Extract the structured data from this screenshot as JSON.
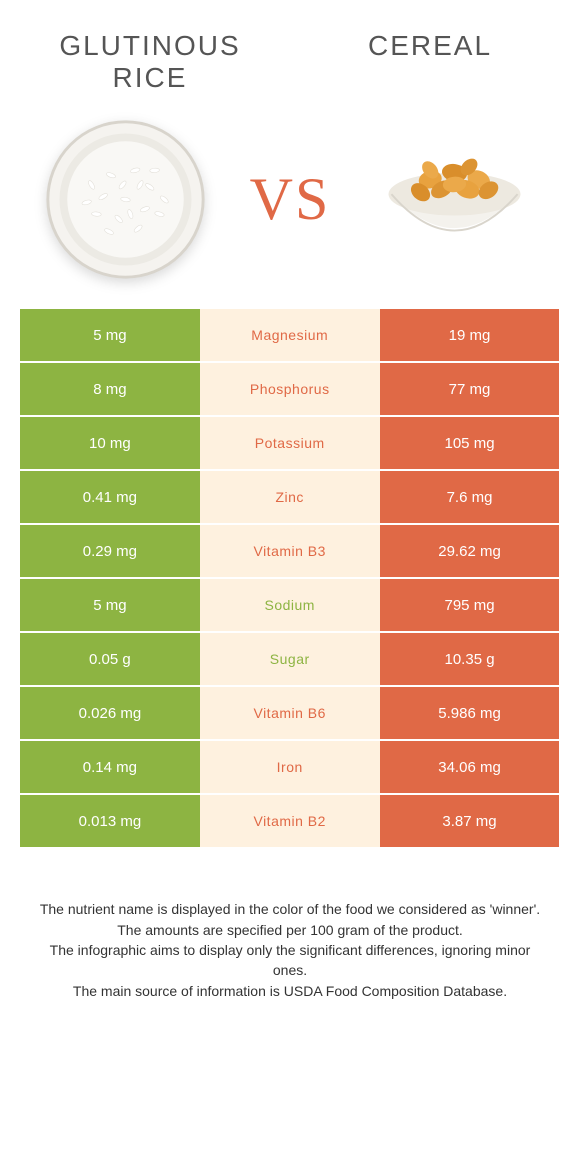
{
  "colors": {
    "green": "#8db442",
    "orange": "#e06946",
    "center_bg": "#fef1df",
    "title_color": "#555555",
    "footer_color": "#333333",
    "page_bg": "#ffffff"
  },
  "typography": {
    "title_fontsize": 28,
    "title_letter_spacing": 2,
    "vs_fontsize": 60,
    "cell_fontsize": 15,
    "nutrient_fontsize": 14,
    "footer_fontsize": 14
  },
  "header": {
    "left_title": "GLUTINOUS RICE",
    "right_title": "CEREAL",
    "vs_label": "VS"
  },
  "icons": {
    "left": "rice-bowl",
    "right": "cereal-bowl"
  },
  "comparison": {
    "rows": [
      {
        "nutrient": "Magnesium",
        "left": "5 mg",
        "right": "19 mg",
        "winner": "orange"
      },
      {
        "nutrient": "Phosphorus",
        "left": "8 mg",
        "right": "77 mg",
        "winner": "orange"
      },
      {
        "nutrient": "Potassium",
        "left": "10 mg",
        "right": "105 mg",
        "winner": "orange"
      },
      {
        "nutrient": "Zinc",
        "left": "0.41 mg",
        "right": "7.6 mg",
        "winner": "orange"
      },
      {
        "nutrient": "Vitamin B3",
        "left": "0.29 mg",
        "right": "29.62 mg",
        "winner": "orange"
      },
      {
        "nutrient": "Sodium",
        "left": "5 mg",
        "right": "795 mg",
        "winner": "green"
      },
      {
        "nutrient": "Sugar",
        "left": "0.05 g",
        "right": "10.35 g",
        "winner": "green"
      },
      {
        "nutrient": "Vitamin B6",
        "left": "0.026 mg",
        "right": "5.986 mg",
        "winner": "orange"
      },
      {
        "nutrient": "Iron",
        "left": "0.14 mg",
        "right": "34.06 mg",
        "winner": "orange"
      },
      {
        "nutrient": "Vitamin B2",
        "left": "0.013 mg",
        "right": "3.87 mg",
        "winner": "orange"
      }
    ]
  },
  "footer": {
    "line1": "The nutrient name is displayed in the color of the food we considered as 'winner'.",
    "line2": "The amounts are specified per 100 gram of the product.",
    "line3": "The infographic aims to display only the significant differences, ignoring minor ones.",
    "line4": "The main source of information is USDA Food Composition Database."
  }
}
